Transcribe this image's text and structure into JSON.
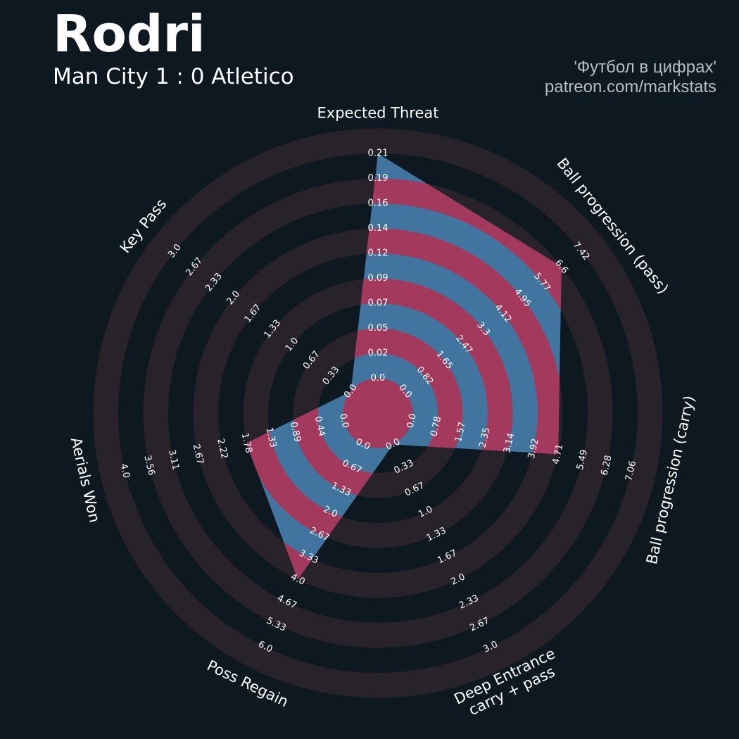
{
  "header": {
    "title": "Rodri",
    "subtitle": "Man City 1 : 0 Atletico",
    "credit_line1": "'Футбол в цифрах'",
    "credit_line2": "patreon.com/markstats"
  },
  "colors": {
    "background": "#0e1820",
    "ring_band": "#28232a",
    "player_fill": "#41759f",
    "player_alt": "#a3395d"
  },
  "chart_data": {
    "type": "radar",
    "title": "Rodri",
    "axes": [
      {
        "label": "Expected Threat",
        "ticks": [
          "0.0",
          "0.02",
          "0.05",
          "0.07",
          "0.09",
          "0.12",
          "0.14",
          "0.16",
          "0.19",
          "0.21"
        ],
        "min": 0,
        "max": 0.21,
        "value": 0.21
      },
      {
        "label": "Ball progression (pass)",
        "ticks": [
          "0.0",
          "0.82",
          "1.65",
          "2.47",
          "3.3",
          "4.12",
          "4.95",
          "5.77",
          "6.6",
          "7.42"
        ],
        "min": 0,
        "max": 7.42,
        "value": 6.6
      },
      {
        "label": "Ball progression (carry)",
        "ticks": [
          "0.0",
          "0.78",
          "1.57",
          "2.35",
          "3.14",
          "3.92",
          "4.71",
          "5.49",
          "6.28",
          "7.06"
        ],
        "min": 0,
        "max": 7.06,
        "value": 4.71
      },
      {
        "label": "Deep Entrance carry + pass",
        "ticks": [
          "0.0",
          "0.33",
          "0.67",
          "1.0",
          "1.33",
          "1.67",
          "2.0",
          "2.33",
          "2.67",
          "3.0"
        ],
        "min": 0,
        "max": 3.0,
        "value": 0.0
      },
      {
        "label": "Poss Regain",
        "ticks": [
          "0.0",
          "0.67",
          "1.33",
          "2.0",
          "2.67",
          "3.33",
          "4.0",
          "4.67",
          "5.33",
          "6.0"
        ],
        "min": 0,
        "max": 6.0,
        "value": 4.0
      },
      {
        "label": "Aerials Won",
        "ticks": [
          "0.0",
          "0.44",
          "0.89",
          "1.33",
          "1.78",
          "2.22",
          "2.67",
          "3.11",
          "3.56",
          "4.0"
        ],
        "min": 0,
        "max": 4.0,
        "value": 1.78
      },
      {
        "label": "Key Pass",
        "ticks": [
          "0.0",
          "0.33",
          "0.67",
          "1.0",
          "1.33",
          "1.67",
          "2.0",
          "2.33",
          "2.67",
          "3.0"
        ],
        "min": 0,
        "max": 3.0,
        "value": 0.0
      }
    ]
  }
}
